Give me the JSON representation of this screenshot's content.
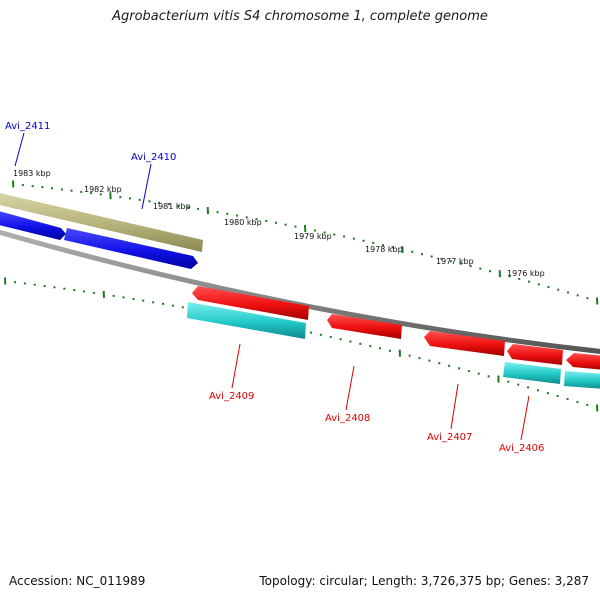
{
  "title": "Agrobacterium vitis S4 chromosome 1, complete genome",
  "footer": {
    "accession": "Accession: NC_011989",
    "stats": "Topology: circular; Length: 3,726,375 bp; Genes: 3,287"
  },
  "colors": {
    "backbone": "#8a8a8a",
    "tick": "#1f7a1f",
    "forward_cds": "#1010e6",
    "reverse_cds": "#ee0e0e",
    "forward_gene": "#b8b67c",
    "reverse_gene": "#20c8c8",
    "forward_label": "#0000cc",
    "reverse_label": "#dd0000"
  },
  "kbp_scale": {
    "unit": "kbp",
    "labels": [
      "1983 kbp",
      "1982 kbp",
      "1981 kbp",
      "1980 kbp",
      "1979 kbp",
      "1978 kbp",
      "1977 kbp",
      "1976 kbp"
    ]
  },
  "features": [
    {
      "name": "Avi_2411",
      "strand": "forward",
      "label_color": "forward_label"
    },
    {
      "name": "Avi_2410",
      "strand": "forward",
      "label_color": "forward_label"
    },
    {
      "name": "Avi_2409",
      "strand": "reverse",
      "label_color": "reverse_label"
    },
    {
      "name": "Avi_2408",
      "strand": "reverse",
      "label_color": "reverse_label"
    },
    {
      "name": "Avi_2407",
      "strand": "reverse",
      "label_color": "reverse_label"
    },
    {
      "name": "Avi_2406",
      "strand": "reverse",
      "label_color": "reverse_label"
    }
  ]
}
